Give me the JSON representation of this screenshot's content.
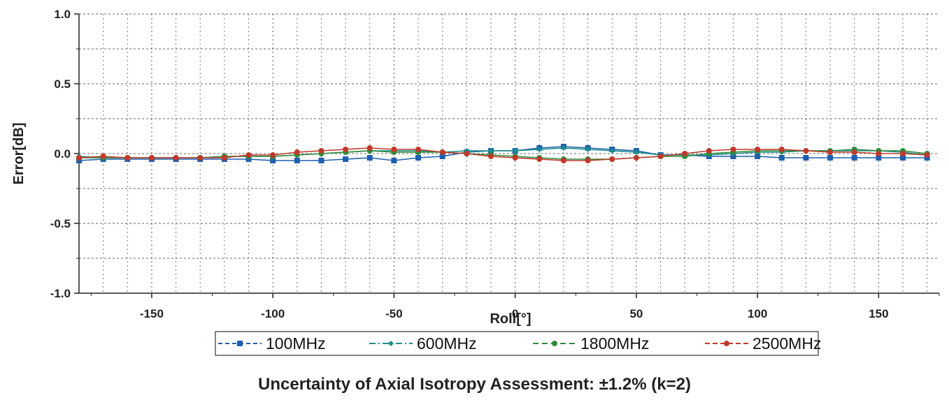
{
  "chart_data": {
    "type": "line",
    "xlabel": "Roll[°]",
    "ylabel": "Error[dB]",
    "xlim": [
      -180,
      175
    ],
    "ylim": [
      -1.0,
      1.0
    ],
    "x_ticks": [
      -150,
      -100,
      -50,
      0,
      50,
      100,
      150
    ],
    "y_ticks": [
      1.0,
      0.5,
      0.0,
      -0.5,
      -1.0
    ],
    "y_tick_labels": [
      "1.0",
      "0.5",
      "0.0",
      "-0.5",
      "-1.0"
    ],
    "grid": true,
    "legend_position": "bottom",
    "x": [
      -180,
      -170,
      -160,
      -150,
      -140,
      -130,
      -120,
      -110,
      -100,
      -90,
      -80,
      -70,
      -60,
      -50,
      -40,
      -30,
      -20,
      -10,
      0,
      10,
      20,
      30,
      40,
      50,
      60,
      70,
      80,
      90,
      100,
      110,
      120,
      130,
      140,
      150,
      160,
      170
    ],
    "series": [
      {
        "name": "100MHz",
        "color": "#1f5fb0",
        "marker": "square",
        "dash": "6,4",
        "values": [
          -0.05,
          -0.04,
          -0.04,
          -0.04,
          -0.04,
          -0.04,
          -0.04,
          -0.04,
          -0.05,
          -0.05,
          -0.05,
          -0.04,
          -0.03,
          -0.05,
          -0.03,
          -0.02,
          0.01,
          0.02,
          0.02,
          0.04,
          0.05,
          0.04,
          0.03,
          0.02,
          -0.01,
          -0.01,
          -0.02,
          -0.02,
          -0.02,
          -0.03,
          -0.03,
          -0.03,
          -0.03,
          -0.03,
          -0.03,
          -0.03
        ]
      },
      {
        "name": "600MHz",
        "color": "#1a8f8a",
        "marker": "diamond",
        "dash": "9,4,2,4",
        "values": [
          -0.02,
          -0.03,
          -0.03,
          -0.03,
          -0.03,
          -0.03,
          -0.02,
          -0.02,
          -0.02,
          -0.01,
          0.0,
          0.01,
          0.02,
          0.02,
          0.02,
          0.01,
          0.02,
          0.02,
          0.02,
          0.03,
          0.04,
          0.03,
          0.02,
          0.01,
          -0.01,
          -0.01,
          -0.01,
          0.0,
          0.01,
          0.01,
          0.02,
          0.02,
          0.02,
          0.02,
          0.01,
          -0.01
        ]
      },
      {
        "name": "1800MHz",
        "color": "#2e8b3a",
        "marker": "circle",
        "dash": "8,5",
        "values": [
          -0.03,
          -0.03,
          -0.03,
          -0.03,
          -0.03,
          -0.03,
          -0.02,
          -0.02,
          -0.02,
          -0.01,
          0.0,
          0.01,
          0.02,
          0.01,
          0.01,
          0.01,
          0.0,
          -0.01,
          -0.02,
          -0.03,
          -0.04,
          -0.04,
          -0.04,
          -0.03,
          -0.02,
          -0.02,
          0.0,
          0.01,
          0.02,
          0.02,
          0.02,
          0.02,
          0.03,
          0.02,
          0.02,
          0.0
        ]
      },
      {
        "name": "2500MHz",
        "color": "#c0392b",
        "marker": "circle",
        "dash": "7,4",
        "values": [
          -0.03,
          -0.02,
          -0.03,
          -0.03,
          -0.03,
          -0.03,
          -0.03,
          -0.01,
          -0.01,
          0.01,
          0.02,
          0.03,
          0.04,
          0.03,
          0.03,
          0.01,
          0.0,
          -0.02,
          -0.03,
          -0.04,
          -0.05,
          -0.05,
          -0.04,
          -0.03,
          -0.02,
          0.0,
          0.02,
          0.03,
          0.03,
          0.03,
          0.02,
          0.01,
          0.01,
          0.0,
          0.0,
          -0.01
        ]
      }
    ]
  },
  "caption": "Uncertainty of Axial Isotropy Assessment: ±1.2% (k=2)"
}
